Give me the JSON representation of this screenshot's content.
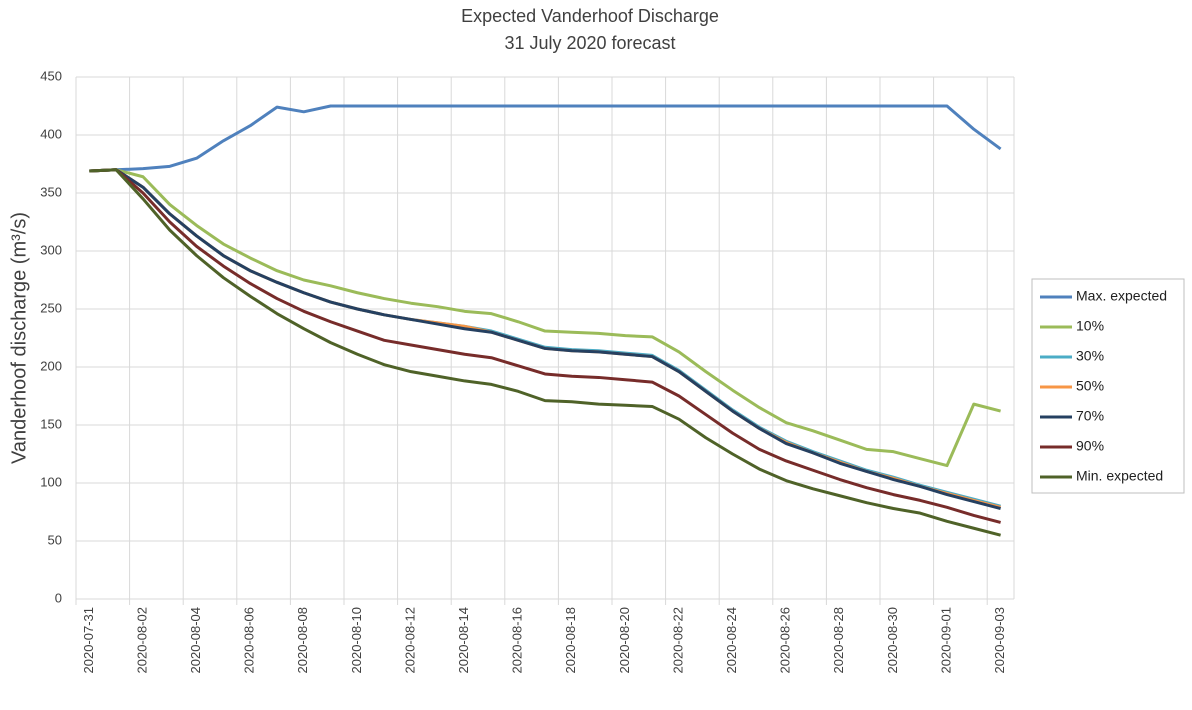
{
  "chart_data": {
    "type": "line",
    "title": "Expected Vanderhoof Discharge",
    "subtitle": "31 July 2020 forecast",
    "y_label": "Vanderhoof discharge (m³/s)",
    "categories": [
      "2020-07-31",
      null,
      "2020-08-02",
      null,
      "2020-08-04",
      null,
      "2020-08-06",
      null,
      "2020-08-08",
      null,
      "2020-08-10",
      null,
      "2020-08-12",
      null,
      "2020-08-14",
      null,
      "2020-08-16",
      null,
      "2020-08-18",
      null,
      "2020-08-20",
      null,
      "2020-08-22",
      null,
      "2020-08-24",
      null,
      "2020-08-26",
      null,
      "2020-08-28",
      null,
      "2020-08-30",
      null,
      "2020-09-01",
      null,
      "2020-09-03"
    ],
    "ylim": [
      0,
      450
    ],
    "yticks": [
      0,
      50,
      100,
      150,
      200,
      250,
      300,
      350,
      400,
      450
    ],
    "grid": true,
    "legend": "right",
    "series": [
      {
        "name": "Max. expected",
        "color": "#4f81bd",
        "values": [
          369,
          370,
          371,
          373,
          380,
          395,
          408,
          424,
          420,
          425,
          425,
          425,
          425,
          425,
          425,
          425,
          425,
          425,
          425,
          425,
          425,
          425,
          425,
          425,
          425,
          425,
          425,
          425,
          425,
          425,
          425,
          425,
          425,
          405,
          388
        ]
      },
      {
        "name": "10%",
        "color": "#9bbb59",
        "values": [
          369,
          370,
          364,
          340,
          322,
          306,
          294,
          283,
          275,
          270,
          264,
          259,
          255,
          252,
          248,
          246,
          239,
          231,
          230,
          229,
          227,
          226,
          213,
          196,
          180,
          165,
          152,
          145,
          137,
          129,
          127,
          121,
          115,
          168,
          162
        ]
      },
      {
        "name": "30%",
        "color": "#4bacc6",
        "values": [
          369,
          370,
          355,
          332,
          313,
          296,
          283,
          273,
          264,
          256,
          250,
          245,
          241,
          238,
          235,
          231,
          224,
          217,
          215,
          214,
          212,
          210,
          197,
          180,
          163,
          148,
          136,
          127,
          119,
          111,
          105,
          98,
          92,
          86,
          80
        ]
      },
      {
        "name": "50%",
        "color": "#f79646",
        "values": [
          369,
          370,
          355,
          332,
          313,
          296,
          283,
          273,
          264,
          256,
          250,
          245,
          241,
          238,
          235,
          230,
          223,
          216,
          214,
          213,
          211,
          209,
          196,
          179,
          162,
          147,
          135,
          126,
          118,
          110,
          104,
          97,
          91,
          85,
          79
        ]
      },
      {
        "name": "70%",
        "color": "#254061",
        "values": [
          369,
          370,
          355,
          332,
          313,
          296,
          283,
          273,
          264,
          256,
          250,
          245,
          241,
          237,
          233,
          230,
          223,
          216,
          214,
          213,
          211,
          209,
          196,
          179,
          162,
          147,
          134,
          126,
          117,
          110,
          103,
          97,
          90,
          84,
          78
        ]
      },
      {
        "name": "90%",
        "color": "#772c2a",
        "values": [
          369,
          370,
          350,
          325,
          304,
          287,
          272,
          259,
          248,
          239,
          231,
          223,
          219,
          215,
          211,
          208,
          201,
          194,
          192,
          191,
          189,
          187,
          175,
          159,
          143,
          129,
          119,
          111,
          103,
          96,
          90,
          85,
          79,
          72,
          66
        ]
      },
      {
        "name": "Min. expected",
        "color": "#4f6228",
        "values": [
          369,
          370,
          345,
          318,
          296,
          277,
          261,
          246,
          233,
          221,
          211,
          202,
          196,
          192,
          188,
          185,
          179,
          171,
          170,
          168,
          167,
          166,
          155,
          139,
          125,
          112,
          102,
          95,
          89,
          83,
          78,
          74,
          67,
          61,
          55
        ]
      }
    ]
  }
}
